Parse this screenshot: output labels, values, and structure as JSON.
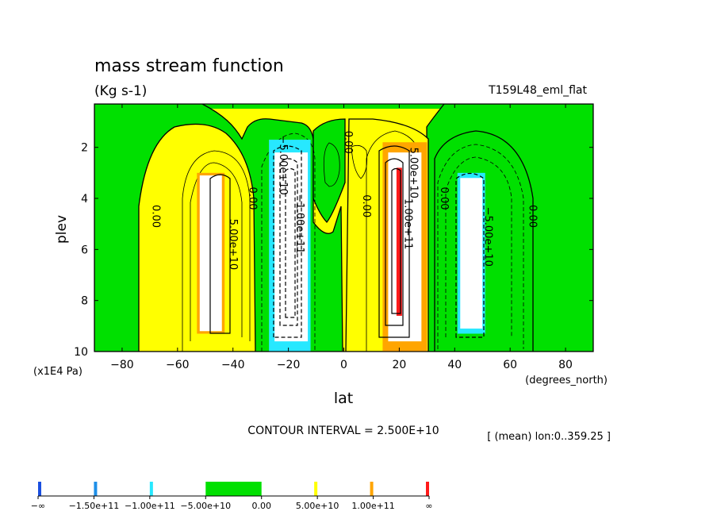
{
  "chart_data": {
    "type": "contour",
    "title": "mass stream function",
    "units": "(Kg s-1)",
    "run_label": "T159L48_eml_flat",
    "xlabel": "lat",
    "xunits": "(degrees_north)",
    "ylabel": "plev",
    "yunits": "(x1E4 Pa)",
    "xlim": [
      -90,
      90
    ],
    "ylim": [
      10,
      0.3
    ],
    "x_ticks": [
      -80,
      -60,
      -40,
      -20,
      0,
      20,
      40,
      60,
      80
    ],
    "x_tick_labels": [
      "−80",
      "−60",
      "−40",
      "−20",
      "0",
      "20",
      "40",
      "60",
      "80"
    ],
    "y_ticks": [
      2,
      4,
      6,
      8,
      10
    ],
    "y_tick_labels": [
      "2",
      "4",
      "6",
      "8",
      "10"
    ],
    "contour_interval": "CONTOUR INTERVAL = 2.500E+10",
    "averaging_note": "[ (mean) lon:0..359.25 ]",
    "contour_labels": [
      {
        "text": "0.00",
        "x": -69,
        "y": 4.7
      },
      {
        "text": "0.00",
        "x": -34,
        "y": 4.0
      },
      {
        "text": "5.00e+10",
        "x": -41,
        "y": 5.8
      },
      {
        "text": "−5.00e+10",
        "x": -23,
        "y": 2.7
      },
      {
        "text": "−1.00e+11",
        "x": -17,
        "y": 5.0
      },
      {
        "text": "0.00",
        "x": 0.5,
        "y": 1.8
      },
      {
        "text": "0.00",
        "x": 7,
        "y": 4.3
      },
      {
        "text": "5.00e+10",
        "x": 24,
        "y": 3.0
      },
      {
        "text": "1.00e+11",
        "x": 22,
        "y": 5.0
      },
      {
        "text": "0.00",
        "x": 35,
        "y": 4.0
      },
      {
        "text": "−5.00e+10",
        "x": 51,
        "y": 5.5
      },
      {
        "text": "0.00",
        "x": 67,
        "y": 4.7
      }
    ],
    "colorbar": {
      "levels": [
        "−∞",
        "−1.50e+11",
        "−1.00e+11",
        "−5.00e+10",
        "0.00",
        "5.00e+10",
        "1.00e+11",
        "∞"
      ],
      "colors": [
        "#1a4fe0",
        "#1e8fe8",
        "#27e8ff",
        "#00e000",
        "#ffff00",
        "#ffa500",
        "#ff1a1a"
      ]
    },
    "colors": {
      "green": "#00e000",
      "yellow": "#ffff00",
      "orange": "#ffa500",
      "cyan": "#27e8ff",
      "red": "#ff1a1a",
      "white": "#ffffff"
    }
  }
}
